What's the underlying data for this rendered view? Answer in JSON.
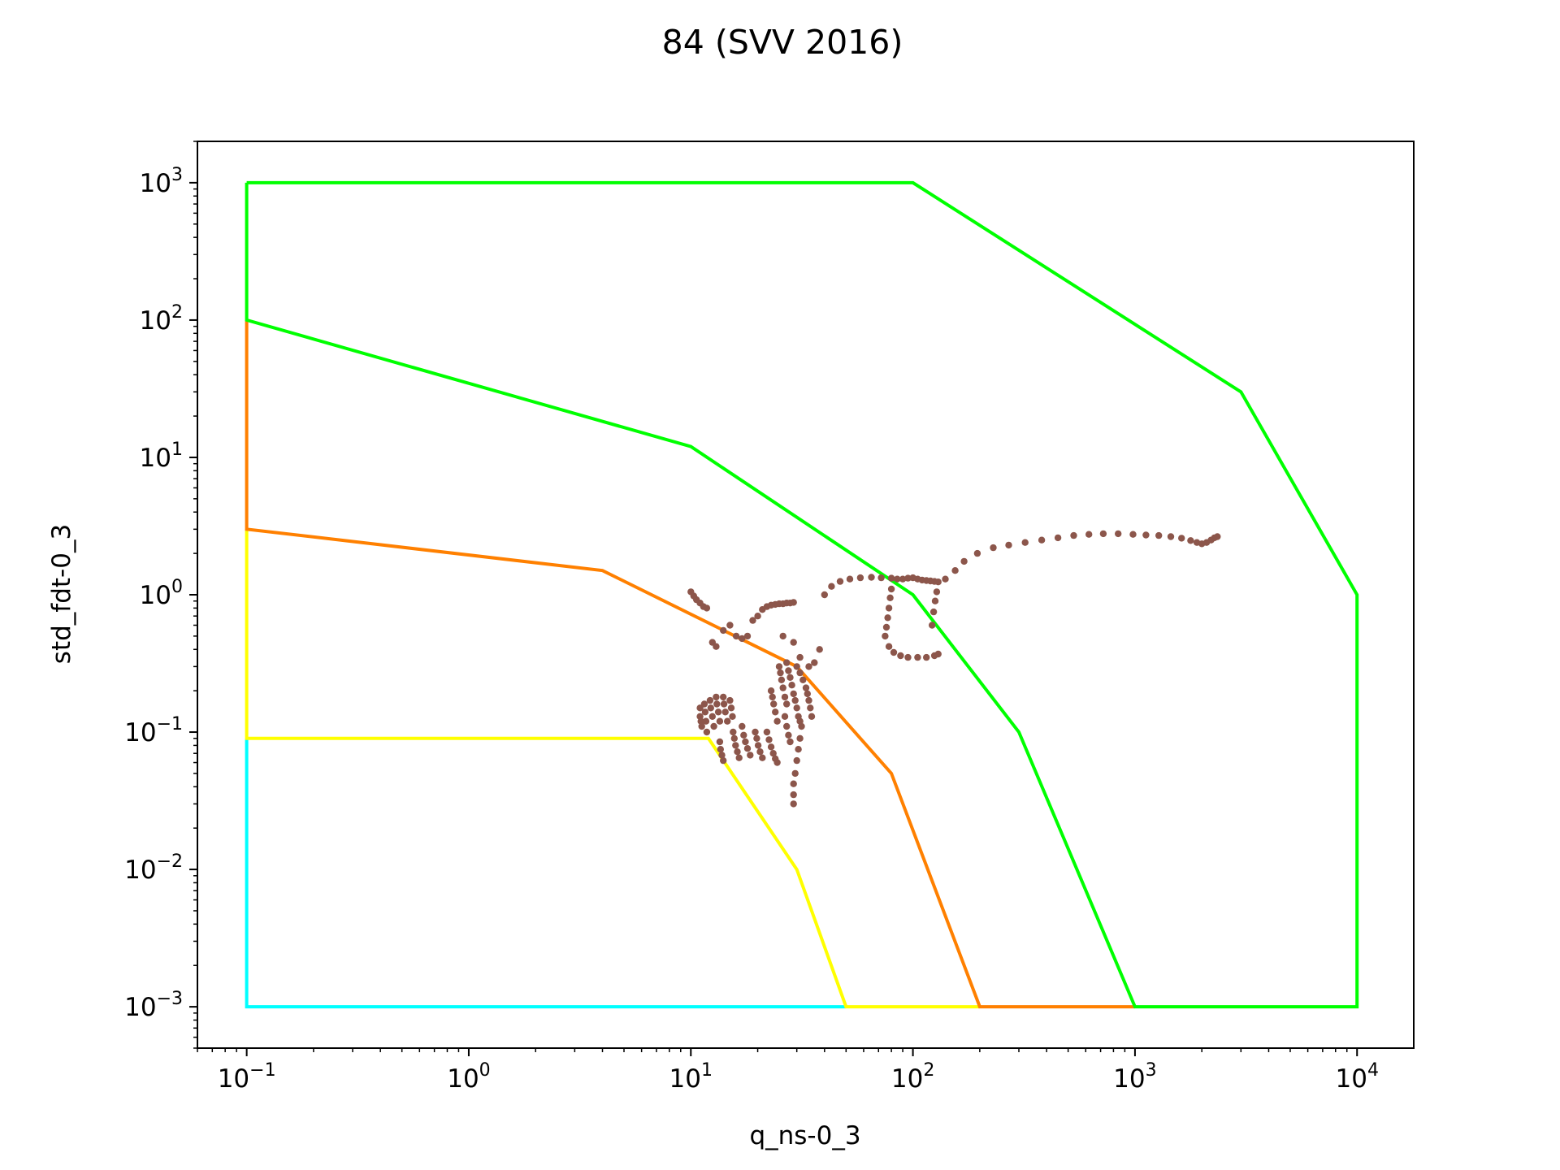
{
  "chart_data": {
    "type": "scatter",
    "title": "84 (SVV 2016)",
    "xlabel": "q_ns-0_3",
    "ylabel": "std_fdt-0_3",
    "xscale": "log",
    "yscale": "log",
    "xlim": [
      0.06,
      18000
    ],
    "ylim": [
      0.0005,
      2000
    ],
    "grid": false,
    "x_ticks": [
      {
        "value": 0.1,
        "base": "10",
        "exp": "−1"
      },
      {
        "value": 1,
        "base": "10",
        "exp": "0"
      },
      {
        "value": 10,
        "base": "10",
        "exp": "1"
      },
      {
        "value": 100,
        "base": "10",
        "exp": "2"
      },
      {
        "value": 1000,
        "base": "10",
        "exp": "3"
      },
      {
        "value": 10000,
        "base": "10",
        "exp": "4"
      }
    ],
    "y_ticks": [
      {
        "value": 0.001,
        "base": "10",
        "exp": "−3"
      },
      {
        "value": 0.01,
        "base": "10",
        "exp": "−2"
      },
      {
        "value": 0.1,
        "base": "10",
        "exp": "−1"
      },
      {
        "value": 1,
        "base": "10",
        "exp": "0"
      },
      {
        "value": 10,
        "base": "10",
        "exp": "1"
      },
      {
        "value": 100,
        "base": "10",
        "exp": "2"
      },
      {
        "value": 1000,
        "base": "10",
        "exp": "3"
      }
    ],
    "zones": [
      {
        "color": "#00ffff",
        "points": [
          [
            0.1,
            0.09
          ],
          [
            0.1,
            0.001
          ],
          [
            50,
            0.001
          ]
        ]
      },
      {
        "color": "#ffff00",
        "points": [
          [
            0.1,
            3
          ],
          [
            0.1,
            0.09
          ],
          [
            12,
            0.09
          ],
          [
            30,
            0.01
          ],
          [
            50,
            0.001
          ],
          [
            200,
            0.001
          ]
        ]
      },
      {
        "color": "#ff8000",
        "points": [
          [
            0.1,
            100
          ],
          [
            0.1,
            3
          ],
          [
            4,
            1.5
          ],
          [
            30,
            0.3
          ],
          [
            80,
            0.05
          ],
          [
            200,
            0.001
          ],
          [
            1000,
            0.001
          ]
        ]
      },
      {
        "color": "#00ff00",
        "points": [
          [
            0.1,
            1000
          ],
          [
            0.1,
            100
          ],
          [
            10,
            12
          ],
          [
            100,
            1
          ],
          [
            300,
            0.1
          ],
          [
            1000,
            0.001
          ],
          [
            10000,
            0.001
          ],
          [
            10000,
            1
          ],
          [
            3000,
            30
          ],
          [
            100,
            1000
          ],
          [
            0.1,
            1000
          ]
        ]
      }
    ],
    "series": [
      {
        "color": "#8c564b",
        "points": [
          [
            10,
            1.05
          ],
          [
            10.3,
            0.98
          ],
          [
            10.6,
            0.92
          ],
          [
            11,
            0.87
          ],
          [
            11.4,
            0.82
          ],
          [
            11.8,
            0.8
          ],
          [
            12.5,
            0.45
          ],
          [
            13,
            0.42
          ],
          [
            14,
            0.55
          ],
          [
            15,
            0.6
          ],
          [
            16,
            0.5
          ],
          [
            17,
            0.48
          ],
          [
            18,
            0.5
          ],
          [
            19,
            0.65
          ],
          [
            20,
            0.7
          ],
          [
            21,
            0.78
          ],
          [
            22,
            0.82
          ],
          [
            23,
            0.84
          ],
          [
            24,
            0.85
          ],
          [
            25,
            0.86
          ],
          [
            26,
            0.86
          ],
          [
            27,
            0.87
          ],
          [
            28,
            0.87
          ],
          [
            29,
            0.88
          ],
          [
            26,
            0.5
          ],
          [
            29,
            0.45
          ],
          [
            31,
            0.35
          ],
          [
            34,
            0.3
          ],
          [
            36,
            0.32
          ],
          [
            38,
            0.4
          ],
          [
            40,
            1.0
          ],
          [
            43,
            1.15
          ],
          [
            47,
            1.25
          ],
          [
            52,
            1.3
          ],
          [
            58,
            1.33
          ],
          [
            65,
            1.34
          ],
          [
            72,
            1.33
          ],
          [
            80,
            1.32
          ],
          [
            85,
            1.3
          ],
          [
            90,
            1.3
          ],
          [
            95,
            1.32
          ],
          [
            100,
            1.33
          ],
          [
            105,
            1.3
          ],
          [
            110,
            1.28
          ],
          [
            115,
            1.27
          ],
          [
            120,
            1.26
          ],
          [
            125,
            1.25
          ],
          [
            130,
            1.24
          ],
          [
            80,
            1.1
          ],
          [
            79,
            0.95
          ],
          [
            78,
            0.8
          ],
          [
            77,
            0.68
          ],
          [
            76,
            0.58
          ],
          [
            75,
            0.5
          ],
          [
            78,
            0.42
          ],
          [
            82,
            0.38
          ],
          [
            88,
            0.36
          ],
          [
            95,
            0.35
          ],
          [
            105,
            0.35
          ],
          [
            115,
            0.35
          ],
          [
            125,
            0.36
          ],
          [
            130,
            0.37
          ],
          [
            128,
            1.05
          ],
          [
            126,
            0.9
          ],
          [
            124,
            0.75
          ],
          [
            122,
            0.6
          ],
          [
            140,
            1.3
          ],
          [
            155,
            1.5
          ],
          [
            170,
            1.75
          ],
          [
            195,
            2.0
          ],
          [
            230,
            2.2
          ],
          [
            270,
            2.3
          ],
          [
            320,
            2.4
          ],
          [
            380,
            2.5
          ],
          [
            450,
            2.6
          ],
          [
            530,
            2.7
          ],
          [
            620,
            2.75
          ],
          [
            720,
            2.78
          ],
          [
            840,
            2.78
          ],
          [
            980,
            2.75
          ],
          [
            1120,
            2.72
          ],
          [
            1280,
            2.7
          ],
          [
            1450,
            2.65
          ],
          [
            1620,
            2.58
          ],
          [
            1780,
            2.48
          ],
          [
            1900,
            2.4
          ],
          [
            2000,
            2.35
          ],
          [
            2100,
            2.4
          ],
          [
            2200,
            2.5
          ],
          [
            2280,
            2.6
          ],
          [
            2350,
            2.65
          ],
          [
            11,
            0.15
          ],
          [
            11,
            0.13
          ],
          [
            11.1,
            0.12
          ],
          [
            11.2,
            0.11
          ],
          [
            11.5,
            0.16
          ],
          [
            11.6,
            0.14
          ],
          [
            11.7,
            0.12
          ],
          [
            11.8,
            0.1
          ],
          [
            12.2,
            0.17
          ],
          [
            12.3,
            0.15
          ],
          [
            12.5,
            0.13
          ],
          [
            12.7,
            0.11
          ],
          [
            13,
            0.18
          ],
          [
            13.1,
            0.16
          ],
          [
            13.3,
            0.14
          ],
          [
            13.5,
            0.12
          ],
          [
            14,
            0.18
          ],
          [
            14.1,
            0.16
          ],
          [
            14.3,
            0.14
          ],
          [
            14.6,
            0.12
          ],
          [
            15,
            0.17
          ],
          [
            15.2,
            0.15
          ],
          [
            15.4,
            0.13
          ],
          [
            13.5,
            0.085
          ],
          [
            13.6,
            0.075
          ],
          [
            13.8,
            0.068
          ],
          [
            14,
            0.062
          ],
          [
            15.5,
            0.1
          ],
          [
            15.7,
            0.09
          ],
          [
            15.9,
            0.08
          ],
          [
            16.2,
            0.072
          ],
          [
            16.5,
            0.065
          ],
          [
            17,
            0.11
          ],
          [
            17.3,
            0.095
          ],
          [
            17.6,
            0.085
          ],
          [
            18,
            0.076
          ],
          [
            18.5,
            0.068
          ],
          [
            19.5,
            0.1
          ],
          [
            19.8,
            0.09
          ],
          [
            20.1,
            0.08
          ],
          [
            20.5,
            0.072
          ],
          [
            21,
            0.065
          ],
          [
            22,
            0.1
          ],
          [
            22.5,
            0.088
          ],
          [
            23,
            0.078
          ],
          [
            23.5,
            0.07
          ],
          [
            24,
            0.064
          ],
          [
            24.5,
            0.06
          ],
          [
            23,
            0.2
          ],
          [
            23.3,
            0.18
          ],
          [
            23.6,
            0.16
          ],
          [
            24,
            0.14
          ],
          [
            24.5,
            0.12
          ],
          [
            25,
            0.3
          ],
          [
            25.3,
            0.27
          ],
          [
            25.6,
            0.24
          ],
          [
            26,
            0.21
          ],
          [
            26.5,
            0.18
          ],
          [
            27,
            0.16
          ],
          [
            26.5,
            0.13
          ],
          [
            27,
            0.11
          ],
          [
            27.5,
            0.095
          ],
          [
            28,
            0.085
          ],
          [
            27,
            0.32
          ],
          [
            27.5,
            0.28
          ],
          [
            28,
            0.25
          ],
          [
            28.5,
            0.22
          ],
          [
            29,
            0.19
          ],
          [
            29.5,
            0.17
          ],
          [
            30,
            0.15
          ],
          [
            30.5,
            0.13
          ],
          [
            31,
            0.12
          ],
          [
            31.5,
            0.11
          ],
          [
            30,
            0.3
          ],
          [
            31,
            0.27
          ],
          [
            32,
            0.24
          ],
          [
            33,
            0.21
          ],
          [
            33.5,
            0.19
          ],
          [
            34,
            0.17
          ],
          [
            34.5,
            0.15
          ],
          [
            35,
            0.13
          ],
          [
            31,
            0.09
          ],
          [
            30.5,
            0.075
          ],
          [
            30,
            0.062
          ],
          [
            29.5,
            0.05
          ],
          [
            29,
            0.042
          ],
          [
            29,
            0.035
          ],
          [
            29,
            0.03
          ]
        ]
      }
    ]
  }
}
